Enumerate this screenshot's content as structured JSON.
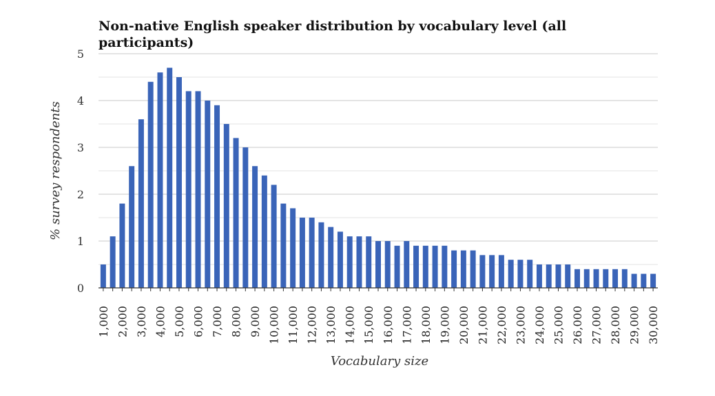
{
  "chart_data": {
    "type": "bar",
    "title": "Non-native English speaker distribution by vocabulary level (all participants)",
    "xlabel": "Vocabulary size",
    "ylabel": "% survey respondents",
    "ylim": [
      0,
      5
    ],
    "yticks": [
      "0",
      "1",
      "2",
      "3",
      "4",
      "5"
    ],
    "grid": true,
    "bar_color": "#3a64b8",
    "xticklabels": [
      "1,000",
      "2,000",
      "3,000",
      "4,000",
      "5,000",
      "6,000",
      "7,000",
      "8,000",
      "9,000",
      "10,000",
      "11,000",
      "12,000",
      "13,000",
      "14,000",
      "15,000",
      "16,000",
      "17,000",
      "18,000",
      "19,000",
      "20,000",
      "21,000",
      "22,000",
      "23,000",
      "24,000",
      "25,000",
      "26,000",
      "27,000",
      "28,000",
      "29,000",
      "30,000"
    ],
    "categories": [
      1000,
      1500,
      2000,
      2500,
      3000,
      3500,
      4000,
      4500,
      5000,
      5500,
      6000,
      6500,
      7000,
      7500,
      8000,
      8500,
      9000,
      9500,
      10000,
      10500,
      11000,
      11500,
      12000,
      12500,
      13000,
      13500,
      14000,
      14500,
      15000,
      15500,
      16000,
      16500,
      17000,
      17500,
      18000,
      18500,
      19000,
      19500,
      20000,
      20500,
      21000,
      21500,
      22000,
      22500,
      23000,
      23500,
      24000,
      24500,
      25000,
      25500,
      26000,
      26500,
      27000,
      27500,
      28000,
      28500,
      29000,
      29500,
      30000
    ],
    "values": [
      0.5,
      1.1,
      1.8,
      2.6,
      3.6,
      4.4,
      4.6,
      4.7,
      4.5,
      4.2,
      4.2,
      4.0,
      3.9,
      3.5,
      3.2,
      3.0,
      2.6,
      2.4,
      2.2,
      1.8,
      1.7,
      1.5,
      1.5,
      1.4,
      1.3,
      1.2,
      1.1,
      1.1,
      1.1,
      1.0,
      1.0,
      0.9,
      1.0,
      0.9,
      0.9,
      0.9,
      0.9,
      0.8,
      0.8,
      0.8,
      0.7,
      0.7,
      0.7,
      0.6,
      0.6,
      0.6,
      0.5,
      0.5,
      0.5,
      0.5,
      0.4,
      0.4,
      0.4,
      0.4,
      0.4,
      0.4,
      0.3,
      0.3,
      0.3
    ]
  }
}
